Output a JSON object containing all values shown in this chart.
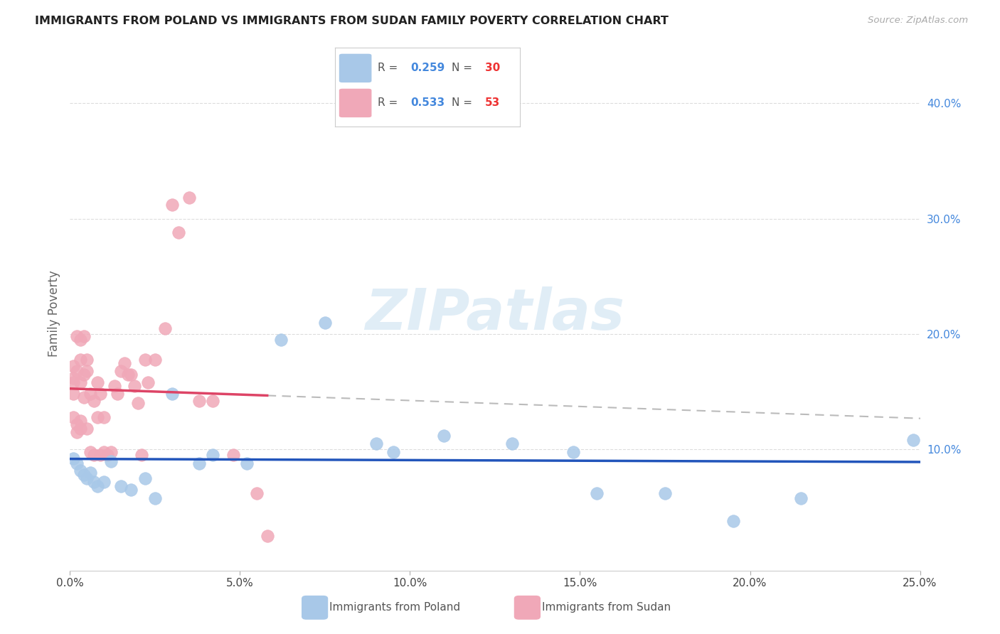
{
  "title": "IMMIGRANTS FROM POLAND VS IMMIGRANTS FROM SUDAN FAMILY POVERTY CORRELATION CHART",
  "source": "Source: ZipAtlas.com",
  "ylabel": "Family Poverty",
  "xlim": [
    0.0,
    0.25
  ],
  "ylim": [
    -0.005,
    0.44
  ],
  "xticks": [
    0.0,
    0.05,
    0.1,
    0.15,
    0.2,
    0.25
  ],
  "yticks_right": [
    0.1,
    0.2,
    0.3,
    0.4
  ],
  "poland_color": "#a8c8e8",
  "sudan_color": "#f0a8b8",
  "poland_line_color": "#2255bb",
  "sudan_line_color": "#dd4466",
  "dashed_line_color": "#bbbbbb",
  "grid_color": "#dddddd",
  "background_color": "#ffffff",
  "poland_x": [
    0.001,
    0.002,
    0.003,
    0.004,
    0.005,
    0.006,
    0.007,
    0.008,
    0.01,
    0.012,
    0.015,
    0.018,
    0.022,
    0.025,
    0.03,
    0.038,
    0.042,
    0.052,
    0.062,
    0.075,
    0.09,
    0.095,
    0.11,
    0.13,
    0.148,
    0.155,
    0.175,
    0.195,
    0.215,
    0.248
  ],
  "poland_y": [
    0.092,
    0.088,
    0.082,
    0.078,
    0.075,
    0.08,
    0.072,
    0.068,
    0.072,
    0.09,
    0.068,
    0.065,
    0.075,
    0.058,
    0.148,
    0.088,
    0.095,
    0.088,
    0.195,
    0.21,
    0.105,
    0.098,
    0.112,
    0.105,
    0.098,
    0.062,
    0.062,
    0.038,
    0.058,
    0.108
  ],
  "sudan_x": [
    0.001,
    0.001,
    0.001,
    0.001,
    0.001,
    0.002,
    0.002,
    0.002,
    0.002,
    0.003,
    0.003,
    0.003,
    0.003,
    0.003,
    0.004,
    0.004,
    0.004,
    0.005,
    0.005,
    0.005,
    0.006,
    0.006,
    0.007,
    0.007,
    0.008,
    0.008,
    0.009,
    0.009,
    0.01,
    0.01,
    0.011,
    0.012,
    0.013,
    0.014,
    0.015,
    0.016,
    0.017,
    0.018,
    0.019,
    0.02,
    0.021,
    0.022,
    0.023,
    0.025,
    0.028,
    0.03,
    0.032,
    0.035,
    0.038,
    0.042,
    0.048,
    0.055,
    0.058
  ],
  "sudan_y": [
    0.128,
    0.148,
    0.158,
    0.162,
    0.172,
    0.115,
    0.122,
    0.168,
    0.198,
    0.118,
    0.125,
    0.158,
    0.178,
    0.195,
    0.145,
    0.165,
    0.198,
    0.118,
    0.168,
    0.178,
    0.098,
    0.148,
    0.095,
    0.142,
    0.128,
    0.158,
    0.095,
    0.148,
    0.098,
    0.128,
    0.095,
    0.098,
    0.155,
    0.148,
    0.168,
    0.175,
    0.165,
    0.165,
    0.155,
    0.14,
    0.095,
    0.178,
    0.158,
    0.178,
    0.205,
    0.312,
    0.288,
    0.318,
    0.142,
    0.142,
    0.095,
    0.062,
    0.025
  ],
  "watermark": "ZIPatlas",
  "legend_poland_label": "Immigrants from Poland",
  "legend_sudan_label": "Immigrants from Sudan",
  "legend_R_color": "#4488dd",
  "legend_N_color": "#ee3333",
  "right_axis_color": "#4488dd"
}
